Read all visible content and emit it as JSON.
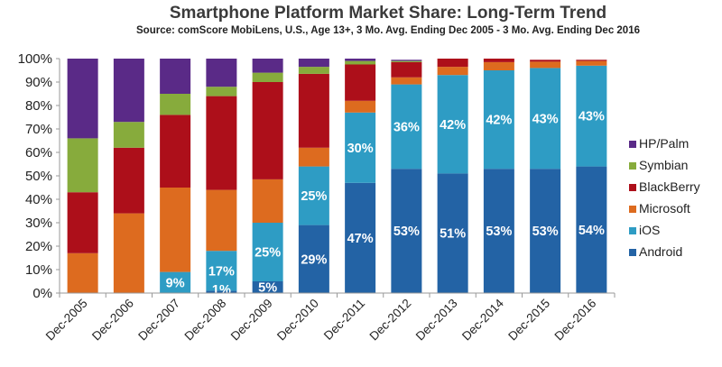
{
  "chart_data": {
    "type": "bar",
    "stacked": true,
    "title": "Smartphone Platform Market Share: Long-Term Trend",
    "subtitle": "Source: comScore MobiLens, U.S., Age 13+, 3 Mo. Avg. Ending Dec 2005 - 3 Mo. Avg. Ending Dec 2016",
    "xlabel": "",
    "ylabel": "",
    "ylim": [
      0,
      100
    ],
    "yticks": [
      "0%",
      "10%",
      "20%",
      "30%",
      "40%",
      "50%",
      "60%",
      "70%",
      "80%",
      "90%",
      "100%"
    ],
    "categories": [
      "Dec-2005",
      "Dec-2006",
      "Dec-2007",
      "Dec-2008",
      "Dec-2009",
      "Dec-2010",
      "Dec-2011",
      "Dec-2012",
      "Dec-2013",
      "Dec-2014",
      "Dec-2015",
      "Dec-2016"
    ],
    "legend_position": "right",
    "series": [
      {
        "name": "Android",
        "color": "#2363a5",
        "values": [
          0,
          0,
          0,
          1,
          5,
          29,
          47,
          53,
          51,
          53,
          53,
          54
        ],
        "labels": [
          null,
          null,
          null,
          "1%",
          "5%",
          "29%",
          "47%",
          "53%",
          "51%",
          "53%",
          "53%",
          "54%"
        ]
      },
      {
        "name": "iOS",
        "color": "#2e9cc4",
        "values": [
          0,
          0,
          9,
          17,
          25,
          25,
          30,
          36,
          42,
          42,
          43,
          43
        ],
        "labels": [
          null,
          null,
          "9%",
          "17%",
          "25%",
          "25%",
          "30%",
          "36%",
          "42%",
          "42%",
          "43%",
          "43%"
        ]
      },
      {
        "name": "Microsoft",
        "color": "#dd6b1f",
        "values": [
          17,
          34,
          36,
          26,
          18.5,
          8,
          5,
          3,
          3.5,
          3.5,
          2.7,
          2
        ]
      },
      {
        "name": "BlackBerry",
        "color": "#ad0f1a",
        "values": [
          26,
          28,
          31,
          40,
          41.5,
          31.5,
          15.5,
          6.5,
          3.5,
          1.5,
          0.8,
          0.5
        ]
      },
      {
        "name": "Symbian",
        "color": "#87ab3c",
        "values": [
          23,
          11,
          9,
          4,
          4,
          3,
          1.5,
          0.5,
          0,
          0,
          0,
          0
        ]
      },
      {
        "name": "HP/Palm",
        "color": "#5a2a87",
        "values": [
          34,
          27,
          15,
          12,
          6,
          3.5,
          1,
          0.5,
          0,
          0,
          0,
          0
        ]
      }
    ],
    "legend_order": [
      "HP/Palm",
      "Symbian",
      "BlackBerry",
      "Microsoft",
      "iOS",
      "Android"
    ]
  }
}
